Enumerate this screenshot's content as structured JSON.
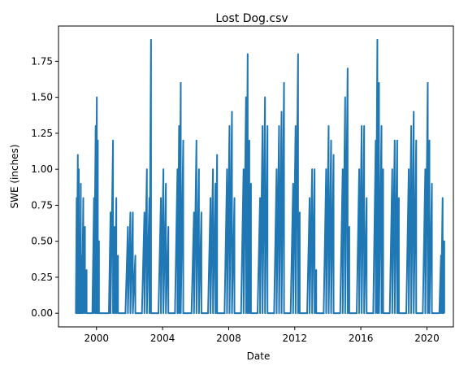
{
  "chart_data": {
    "type": "line",
    "title": "Lost Dog.csv",
    "xlabel": "Date",
    "ylabel": "SWE (inches)",
    "x_ticks": [
      "2000",
      "2004",
      "2008",
      "2012",
      "2016",
      "2020"
    ],
    "y_ticks": [
      "0.00",
      "0.25",
      "0.50",
      "0.75",
      "1.00",
      "1.25",
      "1.50",
      "1.75"
    ],
    "xlim": [
      1997.7,
      2021.6
    ],
    "ylim": [
      -0.095,
      1.995
    ],
    "grid": false,
    "line_color": "#1f77b4",
    "series": [
      {
        "name": "",
        "x": [
          1998.75,
          1998.8,
          1998.87,
          1998.93,
          1999.0,
          1999.05,
          1999.12,
          1999.2,
          1999.3,
          1999.4,
          1999.55,
          1999.65,
          1999.75,
          1999.85,
          1999.95,
          2000.02,
          2000.08,
          2000.15,
          2000.25,
          2000.35,
          2000.6,
          2000.75,
          2000.85,
          2001.0,
          2001.1,
          2001.2,
          2001.3,
          2001.4,
          2001.6,
          2001.75,
          2001.9,
          2002.05,
          2002.2,
          2002.35,
          2002.5,
          2002.65,
          2002.75,
          2002.9,
          2003.05,
          2003.2,
          2003.3,
          2003.4,
          2003.65,
          2003.75,
          2003.9,
          2004.05,
          2004.2,
          2004.35,
          2004.45,
          2004.65,
          2004.75,
          2004.9,
          2005.0,
          2005.1,
          2005.25,
          2005.35,
          2005.6,
          2005.75,
          2005.9,
          2006.05,
          2006.2,
          2006.35,
          2006.45,
          2006.65,
          2006.75,
          2006.9,
          2007.05,
          2007.2,
          2007.3,
          2007.45,
          2007.65,
          2007.75,
          2007.9,
          2008.05,
          2008.2,
          2008.35,
          2008.45,
          2008.65,
          2008.75,
          2008.9,
          2009.05,
          2009.15,
          2009.25,
          2009.35,
          2009.45,
          2009.65,
          2009.75,
          2009.9,
          2010.05,
          2010.2,
          2010.35,
          2010.45,
          2010.65,
          2010.75,
          2010.9,
          2011.05,
          2011.2,
          2011.35,
          2011.45,
          2011.65,
          2011.75,
          2011.9,
          2012.05,
          2012.2,
          2012.3,
          2012.4,
          2012.65,
          2012.75,
          2012.9,
          2013.05,
          2013.2,
          2013.3,
          2013.45,
          2013.65,
          2013.75,
          2013.9,
          2014.05,
          2014.2,
          2014.35,
          2014.45,
          2014.65,
          2014.75,
          2014.9,
          2015.05,
          2015.2,
          2015.3,
          2015.4,
          2015.65,
          2015.75,
          2015.9,
          2016.05,
          2016.2,
          2016.35,
          2016.45,
          2016.65,
          2016.75,
          2016.9,
          2017.0,
          2017.1,
          2017.25,
          2017.35,
          2017.45,
          2017.65,
          2017.75,
          2017.9,
          2018.05,
          2018.2,
          2018.3,
          2018.4,
          2018.65,
          2018.75,
          2018.9,
          2019.05,
          2019.2,
          2019.35,
          2019.45,
          2019.65,
          2019.75,
          2019.9,
          2020.05,
          2020.15,
          2020.3,
          2020.4,
          2020.65,
          2020.75,
          2020.85,
          2020.95,
          2021.0,
          2021.05
        ],
        "y": [
          0.0,
          0.8,
          1.1,
          1.0,
          0.5,
          0.9,
          0.4,
          0.8,
          0.6,
          0.3,
          0.0,
          0.0,
          0.0,
          0.8,
          1.3,
          1.5,
          1.2,
          0.5,
          0.0,
          0.0,
          0.0,
          0.0,
          0.7,
          1.2,
          0.6,
          0.8,
          0.4,
          0.0,
          0.0,
          0.0,
          0.6,
          0.7,
          0.7,
          0.4,
          0.0,
          0.0,
          0.0,
          0.7,
          1.0,
          0.8,
          1.9,
          0.0,
          0.0,
          0.0,
          0.8,
          1.0,
          0.9,
          0.6,
          0.0,
          0.0,
          0.0,
          1.0,
          1.3,
          1.6,
          1.2,
          0.0,
          0.0,
          0.0,
          0.7,
          1.2,
          1.0,
          0.7,
          0.0,
          0.0,
          0.0,
          0.8,
          1.0,
          0.9,
          1.1,
          0.0,
          0.0,
          0.0,
          1.0,
          1.3,
          1.4,
          0.8,
          0.0,
          0.0,
          0.0,
          1.0,
          1.5,
          1.8,
          1.2,
          0.9,
          0.0,
          0.0,
          0.0,
          0.8,
          1.3,
          1.5,
          1.3,
          0.0,
          0.0,
          0.0,
          1.0,
          1.3,
          1.4,
          1.6,
          0.0,
          0.0,
          0.0,
          0.9,
          1.3,
          1.8,
          0.7,
          0.0,
          0.0,
          0.0,
          0.8,
          1.0,
          1.0,
          0.3,
          0.0,
          0.0,
          0.0,
          1.0,
          1.3,
          1.2,
          1.1,
          0.0,
          0.0,
          0.0,
          1.0,
          1.5,
          1.7,
          0.6,
          0.0,
          0.0,
          0.0,
          1.0,
          1.3,
          1.3,
          0.8,
          0.0,
          0.0,
          0.0,
          1.2,
          1.9,
          1.6,
          1.3,
          1.0,
          0.0,
          0.0,
          0.0,
          1.0,
          1.2,
          1.2,
          0.8,
          0.0,
          0.0,
          0.0,
          1.0,
          1.3,
          1.4,
          1.2,
          0.0,
          0.0,
          0.0,
          1.0,
          1.6,
          1.2,
          0.9,
          0.0,
          0.0,
          0.0,
          0.4,
          0.8,
          0.5,
          0.5
        ]
      }
    ]
  }
}
